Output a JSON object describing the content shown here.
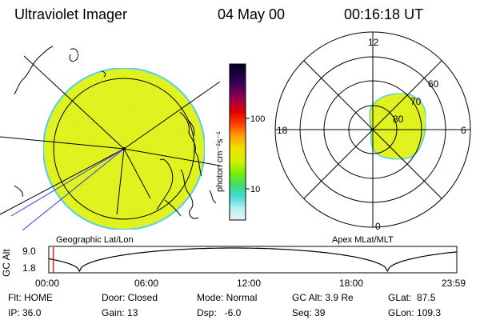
{
  "header": {
    "title": "Ultraviolet Imager",
    "date": "04 May 00",
    "time": "00:16:18 UT"
  },
  "colors": {
    "aurora_fill": "#e3f210",
    "aurora_edge": "#48c8ff",
    "background": "#ffffff"
  },
  "geo_map": {
    "caption": "Geographic Lat/Lon"
  },
  "apex_plot": {
    "caption": "Apex MLat/MLT",
    "mlt_labels": [
      "12",
      "18",
      "6",
      "0"
    ],
    "lat_labels": [
      "60",
      "70",
      "80"
    ]
  },
  "colorbar": {
    "unit_label": "photon cm⁻²s⁻¹",
    "tick_labels": [
      "100",
      "10"
    ],
    "scale": "log",
    "colors": [
      "#f0f0f0",
      "#b0f0f0",
      "#40d8d8",
      "#40e060",
      "#80f000",
      "#d8f000",
      "#f0e000",
      "#ffa000",
      "#ff4000",
      "#e00000",
      "#a00040",
      "#500060",
      "#200040",
      "#000020"
    ]
  },
  "altitude_plot": {
    "axis_label": "GC Alt",
    "y_labels": [
      "9.0",
      "1.8"
    ],
    "time_labels": [
      "00:00",
      "06:00",
      "12:00",
      "18:00",
      "23:59"
    ],
    "current_time_fraction": 0.011
  },
  "status": {
    "flt": "Flt: HOME",
    "ip": "IP: 36.0",
    "door": "Door: Closed",
    "gain": "Gain: 13",
    "mode": "Mode: Normal",
    "dsp": "Dsp:   -6.0",
    "gc_alt": "GC Alt: 3.9 Re",
    "seq": "Seq: 39",
    "glat": "GLat:  87.5",
    "glon": "GLon: 109.3"
  }
}
